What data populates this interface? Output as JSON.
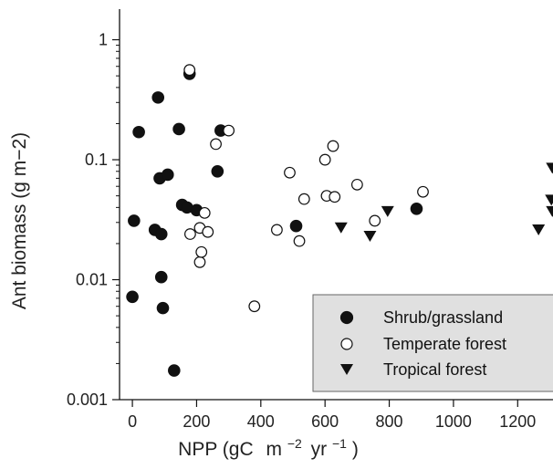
{
  "chart_data": {
    "type": "scatter",
    "xlabel_main": "NPP (gC",
    "xlabel_unit_m": "m",
    "xlabel_exp_m": "−2",
    "xlabel_unit_yr": "yr",
    "xlabel_exp_yr": "−1",
    "xlabel_close": ")",
    "ylabel": "Ant biomass (g m−2)",
    "x_scale": "linear",
    "y_scale": "log",
    "xlim": [
      -40,
      1310
    ],
    "ylim": [
      0.001,
      1.8
    ],
    "x_ticks": [
      0,
      200,
      400,
      600,
      800,
      1000,
      1200
    ],
    "x_tick_labels": [
      "0",
      "200",
      "400",
      "600",
      "800",
      "1000",
      "1200"
    ],
    "y_ticks": [
      0.001,
      0.01,
      0.1,
      1
    ],
    "y_tick_labels": [
      "0.001",
      "0.01",
      "0.1",
      "1"
    ],
    "legend_position": "bottom-right",
    "series": [
      {
        "name": "Shrub/grassland",
        "marker": "filled-circle",
        "color": "#111111",
        "points": [
          [
            0,
            0.0072
          ],
          [
            5,
            0.031
          ],
          [
            20,
            0.17
          ],
          [
            70,
            0.026
          ],
          [
            80,
            0.33
          ],
          [
            85,
            0.07
          ],
          [
            90,
            0.0105
          ],
          [
            90,
            0.024
          ],
          [
            95,
            0.0058
          ],
          [
            110,
            0.075
          ],
          [
            130,
            0.00175
          ],
          [
            145,
            0.18
          ],
          [
            155,
            0.042
          ],
          [
            170,
            0.04
          ],
          [
            178,
            0.52
          ],
          [
            200,
            0.038
          ],
          [
            265,
            0.08
          ],
          [
            275,
            0.175
          ],
          [
            510,
            0.028
          ],
          [
            885,
            0.039
          ]
        ]
      },
      {
        "name": "Temperate forest",
        "marker": "open-circle",
        "color": "#111111",
        "points": [
          [
            178,
            0.56
          ],
          [
            180,
            0.024
          ],
          [
            210,
            0.027
          ],
          [
            210,
            0.014
          ],
          [
            215,
            0.017
          ],
          [
            225,
            0.036
          ],
          [
            235,
            0.025
          ],
          [
            260,
            0.135
          ],
          [
            300,
            0.175
          ],
          [
            380,
            0.006
          ],
          [
            450,
            0.026
          ],
          [
            490,
            0.078
          ],
          [
            520,
            0.021
          ],
          [
            535,
            0.047
          ],
          [
            600,
            0.1
          ],
          [
            605,
            0.05
          ],
          [
            625,
            0.13
          ],
          [
            630,
            0.049
          ],
          [
            700,
            0.062
          ],
          [
            755,
            0.031
          ],
          [
            905,
            0.054
          ]
        ]
      },
      {
        "name": "Tropical forest",
        "marker": "filled-triangle-down",
        "color": "#111111",
        "points": [
          [
            650,
            0.027
          ],
          [
            740,
            0.023
          ],
          [
            795,
            0.037
          ],
          [
            1265,
            0.026
          ],
          [
            1305,
            0.046
          ],
          [
            1308,
            0.085
          ],
          [
            1308,
            0.037
          ]
        ]
      }
    ]
  }
}
